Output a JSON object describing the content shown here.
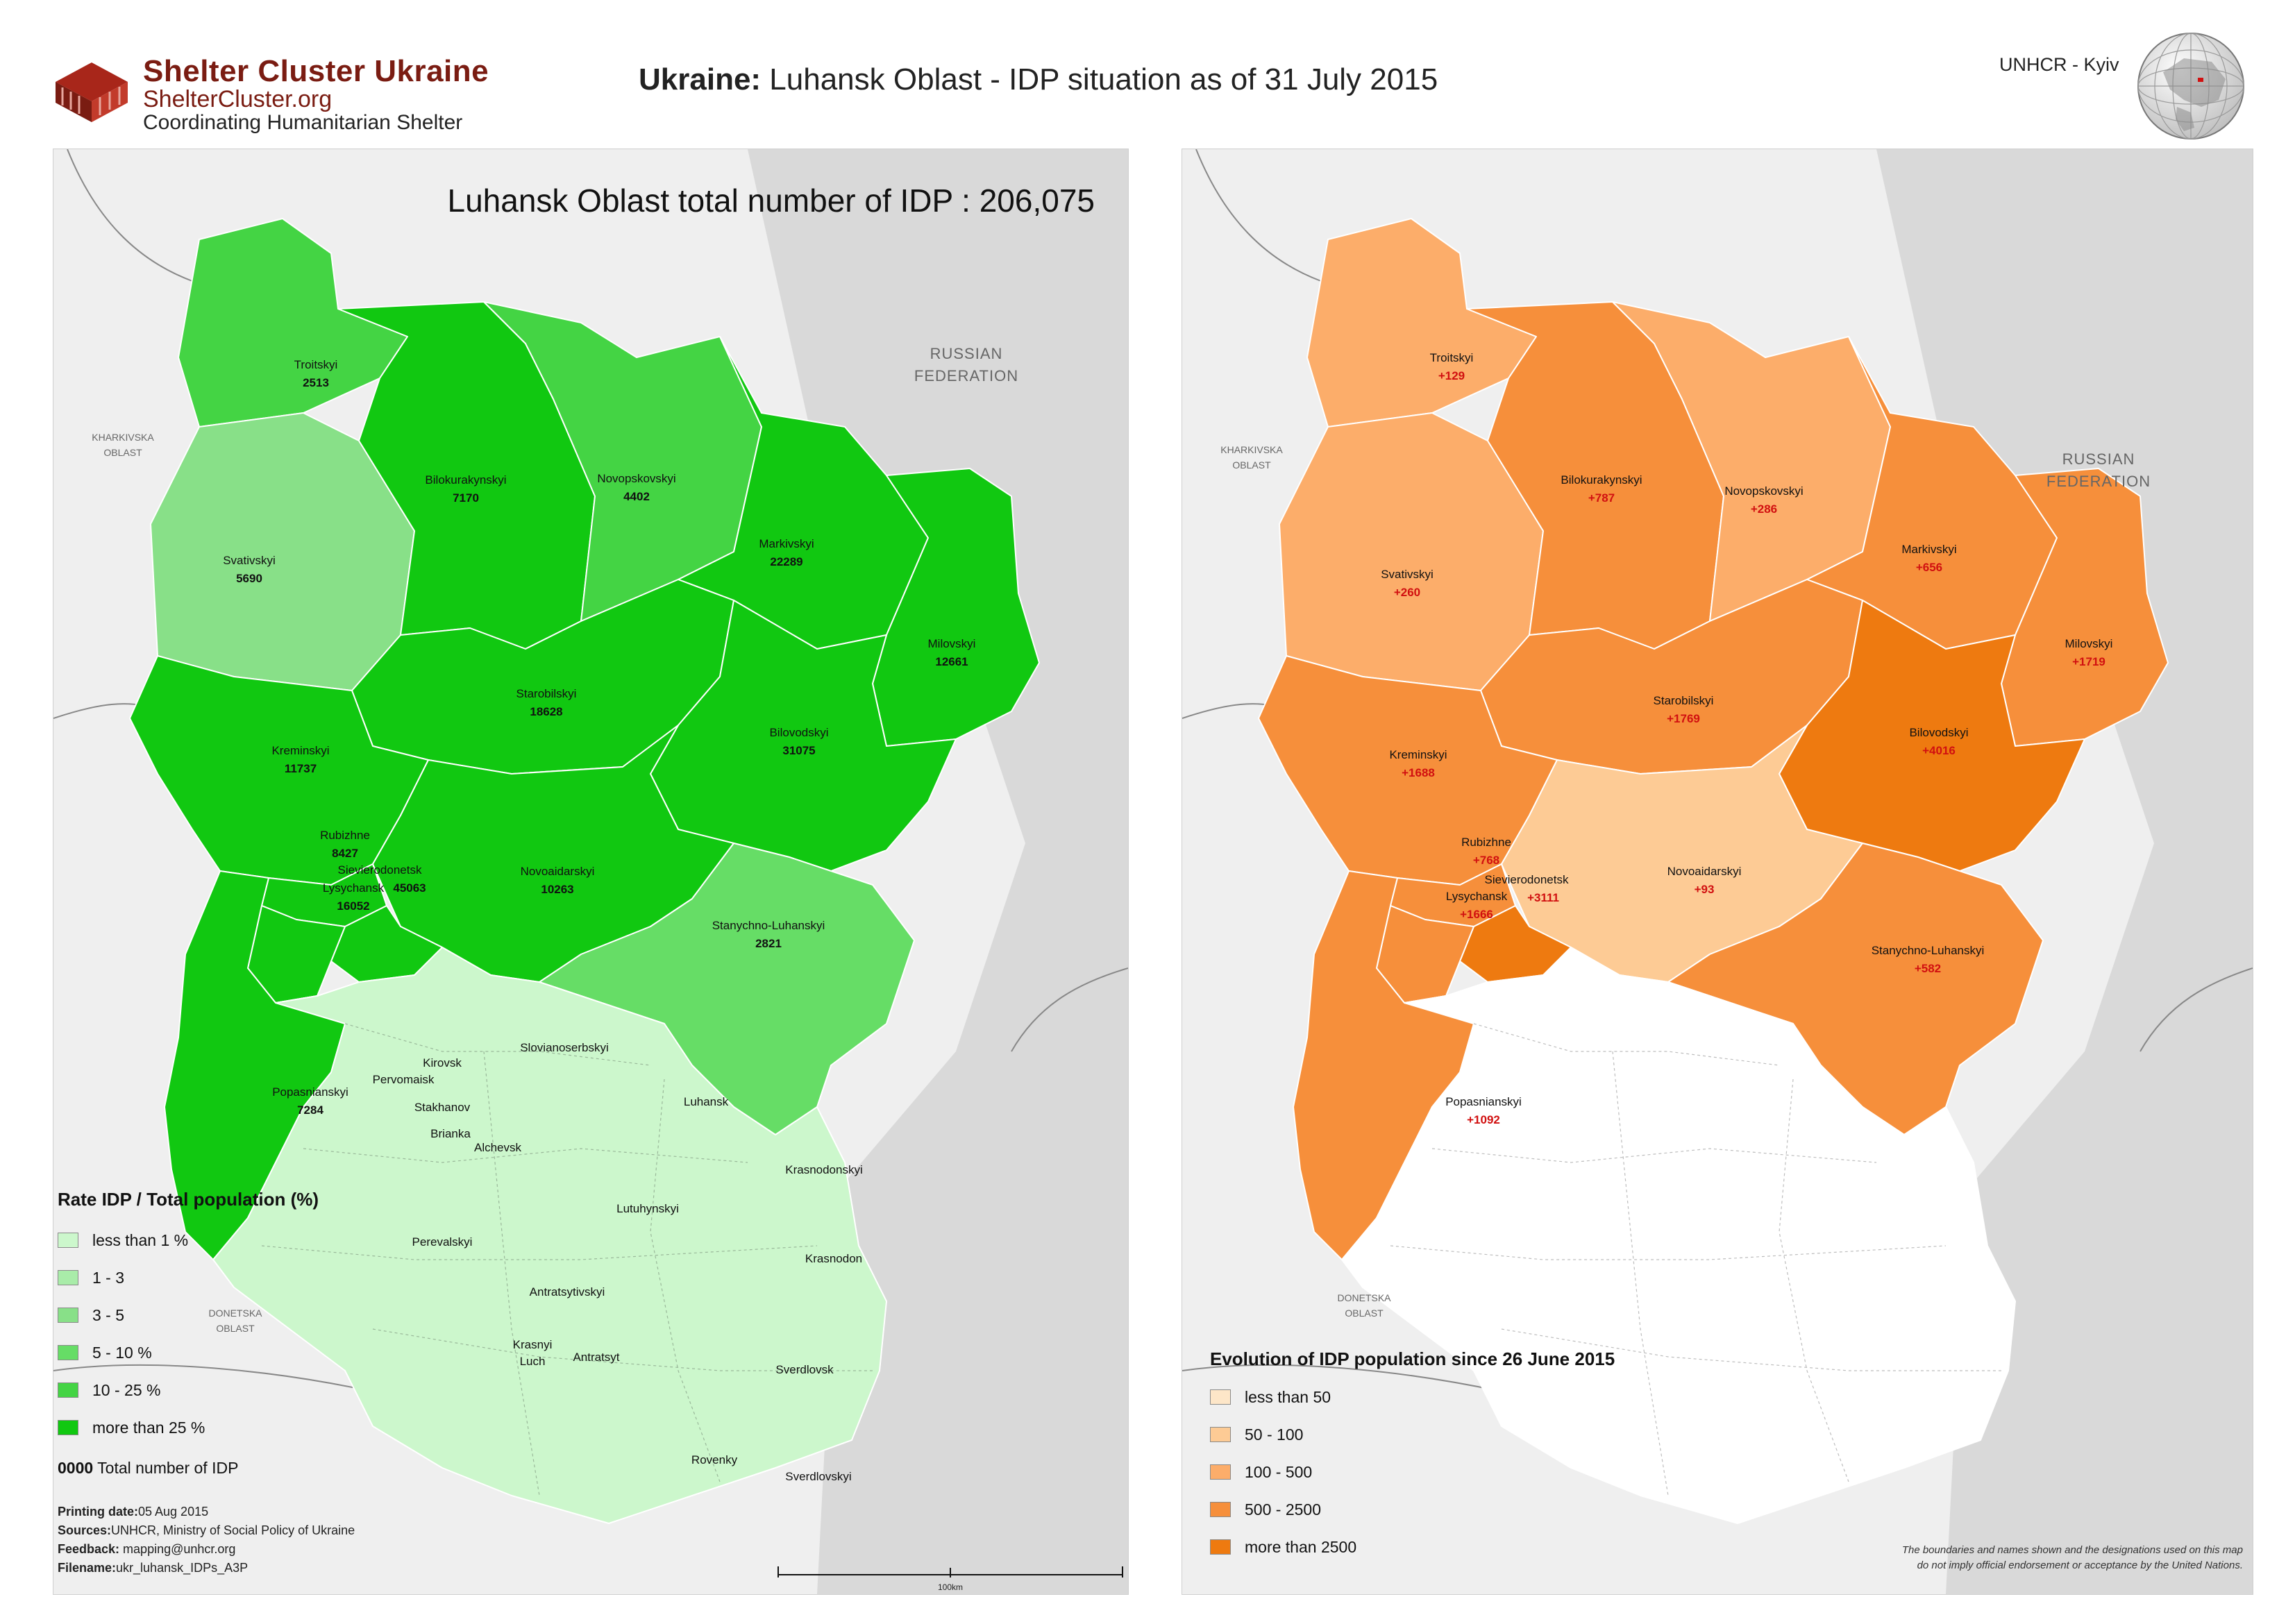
{
  "header": {
    "logo_title": "Shelter Cluster Ukraine",
    "logo_url": "ShelterCluster.org",
    "logo_tagline": "Coordinating Humanitarian Shelter",
    "title_bold": "Ukraine:",
    "title_rest": " Luhansk Oblast - IDP situation as of 31 July 2015",
    "agency": "UNHCR - Kyiv"
  },
  "left_map": {
    "heading": "Luhansk Oblast total number of IDP : 206,075",
    "russia_label_1": "RUSSIAN",
    "russia_label_2": "FEDERATION",
    "kharkivska_1": "KHARKIVSKA",
    "kharkivska_2": "OBLAST",
    "donetska_1": "DONETSKA",
    "donetska_2": "OBLAST",
    "districts": [
      {
        "name": "Troitskyi",
        "value": "2513"
      },
      {
        "name": "Bilokurakynskyi",
        "value": "7170"
      },
      {
        "name": "Novopskovskyi",
        "value": "4402"
      },
      {
        "name": "Svativskyi",
        "value": "5690"
      },
      {
        "name": "Markivskyi",
        "value": "22289"
      },
      {
        "name": "Milovskyi",
        "value": "12661"
      },
      {
        "name": "Starobilskyi",
        "value": "18628"
      },
      {
        "name": "Kreminskyi",
        "value": "11737"
      },
      {
        "name": "Bilovodskyi",
        "value": "31075"
      },
      {
        "name": "Rubizhne",
        "value": "8427"
      },
      {
        "name": "Sievierodonetsk",
        "value": "45063"
      },
      {
        "name": "Lysychansk",
        "value": "16052"
      },
      {
        "name": "Novoaidarskyi",
        "value": "10263"
      },
      {
        "name": "Stanychno-Luhanskyi",
        "value": "2821"
      },
      {
        "name": "Popasnianskyi",
        "value": "7284"
      }
    ],
    "no_data_places": [
      "Kirovsk",
      "Pervomaisk",
      "Stakhanov",
      "Brianka",
      "Alchevsk",
      "Slovianoserbskyi",
      "Luhansk",
      "Krasnodonskyi",
      "Lutuhynskyi",
      "Perevalskyi",
      "Krasnodon",
      "Antratsytivskyi",
      "Krasnyi",
      "Luch",
      "Antratsyt",
      "Sverdlovsk",
      "Rovenky",
      "Sverdlovskyi"
    ],
    "legend": {
      "title": "Rate IDP / Total population (%)",
      "items": [
        {
          "label": "less than 1 %",
          "color": "#ccf7cc"
        },
        {
          "label": "1 - 3",
          "color": "#a9eca9"
        },
        {
          "label": "3 - 5",
          "color": "#88e088"
        },
        {
          "label": "5 - 10 %",
          "color": "#66dd66"
        },
        {
          "label": "10 - 25 %",
          "color": "#44d444"
        },
        {
          "label": "more than 25 %",
          "color": "#11c811"
        }
      ],
      "total_code": "0000",
      "total_label": " Total number of IDP"
    },
    "meta": {
      "printing_label": "Printing date:",
      "printing_value": "05 Aug 2015",
      "sources_label": "Sources:",
      "sources_value": "UNHCR, Ministry of Social Policy of Ukraine",
      "feedback_label": "Feedback:",
      "feedback_value": " mapping@unhcr.org",
      "filename_label": "Filename:",
      "filename_value": "ukr_luhansk_IDPs_A3P"
    },
    "scale_label": "100km"
  },
  "right_map": {
    "russia_label_1": "RUSSIAN",
    "russia_label_2": "FEDERATION",
    "kharkivska_1": "KHARKIVSKA",
    "kharkivska_2": "OBLAST",
    "donetska_1": "DONETSKA",
    "donetska_2": "OBLAST",
    "districts": [
      {
        "name": "Troitskyi",
        "value": "+129"
      },
      {
        "name": "Bilokurakynskyi",
        "value": "+787"
      },
      {
        "name": "Novopskovskyi",
        "value": "+286"
      },
      {
        "name": "Svativskyi",
        "value": "+260"
      },
      {
        "name": "Markivskyi",
        "value": "+656"
      },
      {
        "name": "Milovskyi",
        "value": "+1719"
      },
      {
        "name": "Starobilskyi",
        "value": "+1769"
      },
      {
        "name": "Kreminskyi",
        "value": "+1688"
      },
      {
        "name": "Bilovodskyi",
        "value": "+4016"
      },
      {
        "name": "Rubizhne",
        "value": "+768"
      },
      {
        "name": "Sievierodonetsk",
        "value": "+3111"
      },
      {
        "name": "Lysychansk",
        "value": "+1666"
      },
      {
        "name": "Novoaidarskyi",
        "value": "+93"
      },
      {
        "name": "Stanychno-Luhanskyi",
        "value": "+582"
      },
      {
        "name": "Popasnianskyi",
        "value": "+1092"
      }
    ],
    "legend": {
      "title": "Evolution of IDP population since 26 June 2015",
      "items": [
        {
          "label": "less than 50",
          "color": "#fde6c8"
        },
        {
          "label": "50 - 100",
          "color": "#fdcb95"
        },
        {
          "label": "100 - 500",
          "color": "#fcad6a"
        },
        {
          "label": "500 - 2500",
          "color": "#f68f3b"
        },
        {
          "label": "more than 2500",
          "color": "#ee7a10"
        }
      ]
    },
    "disclaimer_1": "The boundaries and names shown and the designations used on this map",
    "disclaimer_2": "do not imply official endorsement or acceptance by the United Nations."
  }
}
